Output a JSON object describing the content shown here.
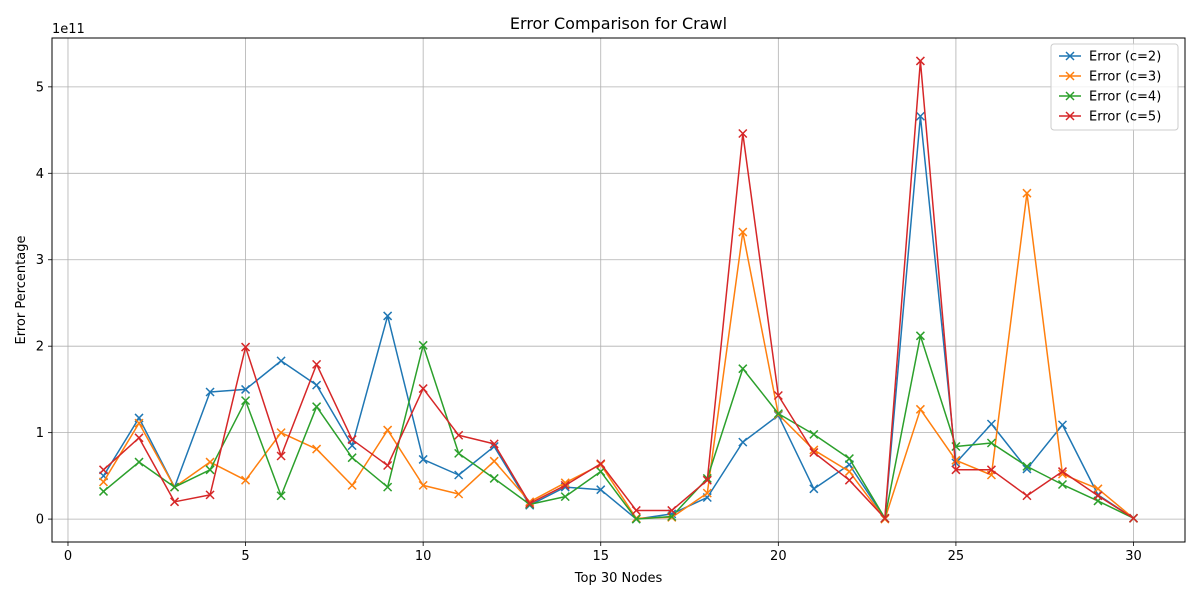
{
  "chart_data": {
    "type": "line",
    "title": "Error Comparison for Crawl",
    "xlabel": "Top 30 Nodes",
    "ylabel": "Error Percentage",
    "y_offset_label": "1e11",
    "xlim": [
      -0.45,
      31.45
    ],
    "ylim": [
      -0.265,
      5.565
    ],
    "y_scale_factor": 100000000000.0,
    "x_ticks": [
      0,
      5,
      10,
      15,
      20,
      25,
      30
    ],
    "y_ticks": [
      0,
      1,
      2,
      3,
      4,
      5
    ],
    "grid": true,
    "legend_position": "top-right",
    "marker": "x",
    "x": [
      1,
      2,
      3,
      4,
      5,
      6,
      7,
      8,
      9,
      10,
      11,
      12,
      13,
      14,
      15,
      16,
      17,
      18,
      19,
      20,
      21,
      22,
      23,
      24,
      25,
      26,
      27,
      28,
      29,
      30
    ],
    "series": [
      {
        "name": "Error (c=2)",
        "color": "#1f77b4",
        "values": [
          0.5,
          1.17,
          0.37,
          1.47,
          1.5,
          1.83,
          1.55,
          0.85,
          2.35,
          0.69,
          0.51,
          0.84,
          0.16,
          0.37,
          0.34,
          0.0,
          0.06,
          0.25,
          0.89,
          1.2,
          0.35,
          0.63,
          0.01,
          4.66,
          0.65,
          1.1,
          0.58,
          1.09,
          0.28,
          0.01
        ]
      },
      {
        "name": "Error (c=3)",
        "color": "#ff7f0e",
        "values": [
          0.43,
          1.11,
          0.37,
          0.66,
          0.45,
          1.0,
          0.81,
          0.39,
          1.03,
          0.39,
          0.29,
          0.67,
          0.2,
          0.42,
          0.63,
          0.01,
          0.02,
          0.3,
          3.32,
          1.21,
          0.8,
          0.55,
          0.0,
          1.27,
          0.68,
          0.51,
          3.77,
          0.52,
          0.35,
          0.01
        ]
      },
      {
        "name": "Error (c=4)",
        "color": "#2ca02c",
        "values": [
          0.32,
          0.66,
          0.37,
          0.57,
          1.37,
          0.27,
          1.3,
          0.71,
          0.37,
          2.01,
          0.76,
          0.47,
          0.17,
          0.26,
          0.55,
          0.0,
          0.03,
          0.47,
          1.74,
          1.22,
          0.98,
          0.7,
          0.01,
          2.12,
          0.84,
          0.88,
          0.61,
          0.4,
          0.21,
          0.01
        ]
      },
      {
        "name": "Error (c=5)",
        "color": "#d62728",
        "values": [
          0.57,
          0.94,
          0.2,
          0.28,
          1.99,
          0.73,
          1.79,
          0.92,
          0.62,
          1.51,
          0.97,
          0.87,
          0.18,
          0.39,
          0.64,
          0.1,
          0.1,
          0.45,
          4.46,
          1.43,
          0.77,
          0.45,
          0.01,
          5.3,
          0.57,
          0.57,
          0.27,
          0.55,
          0.27,
          0.01
        ]
      }
    ]
  }
}
